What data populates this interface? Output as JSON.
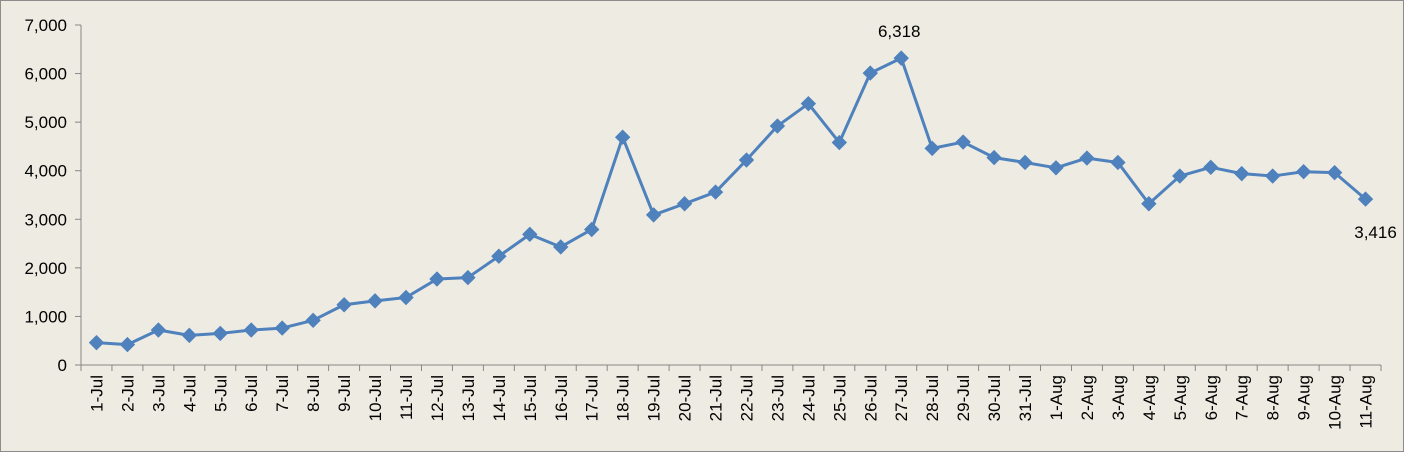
{
  "chart_data": {
    "type": "line",
    "title": "",
    "xlabel": "",
    "ylabel": "",
    "categories": [
      "1-Jul",
      "2-Jul",
      "3-Jul",
      "4-Jul",
      "5-Jul",
      "6-Jul",
      "7-Jul",
      "8-Jul",
      "9-Jul",
      "10-Jul",
      "11-Jul",
      "12-Jul",
      "13-Jul",
      "14-Jul",
      "15-Jul",
      "16-Jul",
      "17-Jul",
      "18-Jul",
      "19-Jul",
      "20-Jul",
      "21-Jul",
      "22-Jul",
      "23-Jul",
      "24-Jul",
      "25-Jul",
      "26-Jul",
      "27-Jul",
      "28-Jul",
      "29-Jul",
      "30-Jul",
      "31-Jul",
      "1-Aug",
      "2-Aug",
      "3-Aug",
      "4-Aug",
      "5-Aug",
      "6-Aug",
      "7-Aug",
      "8-Aug",
      "9-Aug",
      "10-Aug",
      "11-Aug"
    ],
    "series": [
      {
        "name": "",
        "values": [
          460,
          420,
          720,
          610,
          650,
          720,
          760,
          920,
          1240,
          1320,
          1390,
          1770,
          1800,
          2240,
          2690,
          2430,
          2790,
          4690,
          3090,
          3320,
          3560,
          4220,
          4920,
          5380,
          4580,
          6010,
          6318,
          4460,
          4590,
          4270,
          4170,
          4060,
          4260,
          4170,
          3320,
          3890,
          4070,
          3940,
          3890,
          3980,
          3960,
          3416
        ]
      }
    ],
    "ylim": [
      0,
      7000
    ],
    "yticks": [
      0,
      1000,
      2000,
      3000,
      4000,
      5000,
      6000,
      7000
    ],
    "ytick_labels": [
      "0",
      "1,000",
      "2,000",
      "3,000",
      "4,000",
      "5,000",
      "6,000",
      "7,000"
    ],
    "data_labels": [
      {
        "category": "27-Jul",
        "text": "6,318"
      },
      {
        "category": "11-Aug",
        "text": "3,416"
      }
    ],
    "grid": false,
    "legend": "none",
    "colors": {
      "series": "#4f81bd",
      "background": "#eeece2",
      "axis": "#868686",
      "border": "#8c8c8c"
    },
    "marker": "diamond"
  }
}
